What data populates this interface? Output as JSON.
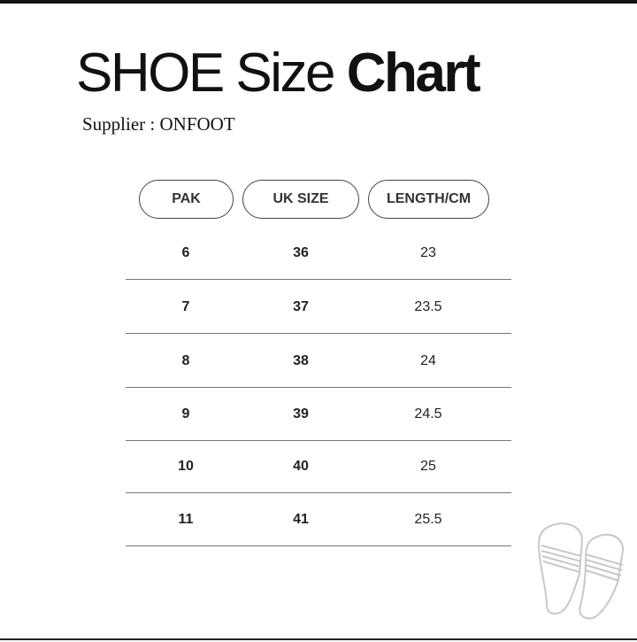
{
  "title": {
    "regular": "SHOE Size",
    "bold": "Chart"
  },
  "supplier": "Supplier : ONFOOT",
  "table": {
    "headers": [
      "PAK",
      "UK SIZE",
      "LENGTH/CM"
    ],
    "rows": [
      [
        "6",
        "36",
        "23"
      ],
      [
        "7",
        "37",
        "23.5"
      ],
      [
        "8",
        "38",
        "24"
      ],
      [
        "9",
        "39",
        "24.5"
      ],
      [
        "10",
        "40",
        "25"
      ],
      [
        "11",
        "41",
        "25.5"
      ]
    ]
  },
  "icons": {
    "decoration": "slippers-icon"
  }
}
